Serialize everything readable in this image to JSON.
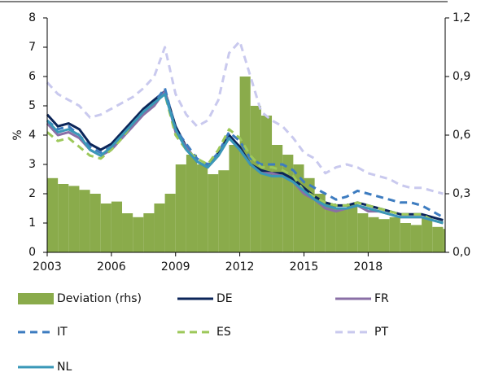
{
  "chart_data": {
    "type": "combo",
    "y_label": "%",
    "x": [
      2003,
      2003.5,
      2004,
      2004.5,
      2005,
      2005.5,
      2006,
      2006.5,
      2007,
      2007.5,
      2008,
      2008.5,
      2009,
      2009.5,
      2010,
      2010.5,
      2011,
      2011.5,
      2012,
      2012.5,
      2013,
      2013.5,
      2014,
      2014.5,
      2015,
      2015.5,
      2016,
      2016.5,
      2017,
      2017.5,
      2018,
      2018.5,
      2019,
      2019.5,
      2020,
      2020.5,
      2021,
      2021.5
    ],
    "xlim": [
      2003,
      2021.6
    ],
    "xticks": [
      2003,
      2006,
      2009,
      2012,
      2015,
      2018
    ],
    "ylim": [
      0,
      8
    ],
    "yticks": [
      0,
      1,
      2,
      3,
      4,
      5,
      6,
      7,
      8
    ],
    "y2lim": [
      0,
      1.2
    ],
    "y2ticks": [
      {
        "value": 0,
        "label": "0,0"
      },
      {
        "value": 0.3,
        "label": "0,3"
      },
      {
        "value": 0.6,
        "label": "0,6"
      },
      {
        "value": 0.9,
        "label": "0,9"
      },
      {
        "value": 1.2,
        "label": "1,2"
      }
    ],
    "series": [
      {
        "name": "Deviation (rhs)",
        "type": "bar",
        "axis": "y2",
        "color": "#8aab4b",
        "values": [
          0.38,
          0.35,
          0.34,
          0.32,
          0.3,
          0.25,
          0.26,
          0.2,
          0.18,
          0.2,
          0.25,
          0.3,
          0.45,
          0.5,
          0.45,
          0.4,
          0.42,
          0.55,
          0.9,
          0.75,
          0.7,
          0.55,
          0.5,
          0.45,
          0.38,
          0.3,
          0.25,
          0.22,
          0.25,
          0.2,
          0.18,
          0.17,
          0.18,
          0.15,
          0.14,
          0.18,
          0.13,
          0.12
        ]
      },
      {
        "name": "DE",
        "type": "line",
        "dashed": false,
        "color": "#0b2559",
        "values": [
          4.7,
          4.3,
          4.4,
          4.2,
          3.7,
          3.5,
          3.7,
          4.1,
          4.5,
          4.9,
          5.2,
          5.5,
          4.3,
          3.6,
          3.1,
          2.9,
          3.4,
          4.0,
          3.6,
          3.0,
          2.8,
          2.7,
          2.7,
          2.5,
          2.2,
          1.9,
          1.7,
          1.6,
          1.6,
          1.7,
          1.6,
          1.5,
          1.4,
          1.3,
          1.3,
          1.3,
          1.2,
          1.1
        ]
      },
      {
        "name": "FR",
        "type": "line",
        "dashed": false,
        "color": "#8a6fa6",
        "values": [
          4.4,
          4.0,
          4.1,
          3.9,
          3.5,
          3.3,
          3.5,
          3.9,
          4.3,
          4.7,
          5.0,
          5.5,
          4.1,
          3.6,
          3.1,
          2.9,
          3.3,
          3.9,
          3.5,
          3.0,
          2.7,
          2.7,
          2.6,
          2.4,
          2.0,
          1.8,
          1.5,
          1.4,
          1.5,
          1.6,
          1.4,
          1.4,
          1.3,
          1.2,
          1.2,
          1.2,
          1.1,
          1.0
        ]
      },
      {
        "name": "IT",
        "type": "line",
        "dashed": true,
        "color": "#3d7cc0",
        "values": [
          4.5,
          4.2,
          4.3,
          4.0,
          3.6,
          3.4,
          3.6,
          4.0,
          4.4,
          4.8,
          5.1,
          5.6,
          4.2,
          3.7,
          3.2,
          3.0,
          3.4,
          4.1,
          3.8,
          3.2,
          3.0,
          3.0,
          3.0,
          2.8,
          2.4,
          2.2,
          2.0,
          1.8,
          1.9,
          2.1,
          2.0,
          1.9,
          1.8,
          1.7,
          1.7,
          1.6,
          1.4,
          1.2
        ]
      },
      {
        "name": "ES",
        "type": "line",
        "dashed": true,
        "color": "#9dc85a",
        "values": [
          4.1,
          3.8,
          3.9,
          3.6,
          3.3,
          3.2,
          3.5,
          3.9,
          4.4,
          4.8,
          5.1,
          5.4,
          4.0,
          3.5,
          3.2,
          3.0,
          3.5,
          4.2,
          3.9,
          3.3,
          2.9,
          2.9,
          2.8,
          2.6,
          2.1,
          1.9,
          1.7,
          1.6,
          1.6,
          1.7,
          1.6,
          1.5,
          1.4,
          1.3,
          1.3,
          1.3,
          1.1,
          1.0
        ]
      },
      {
        "name": "PT",
        "type": "line",
        "dashed": true,
        "color": "#c9c9ee",
        "values": [
          5.8,
          5.4,
          5.2,
          5.0,
          4.6,
          4.7,
          4.9,
          5.1,
          5.3,
          5.6,
          6.0,
          7.0,
          5.4,
          4.7,
          4.3,
          4.5,
          5.2,
          6.8,
          7.2,
          6.0,
          4.8,
          4.5,
          4.3,
          3.9,
          3.4,
          3.2,
          2.7,
          2.9,
          3.0,
          2.9,
          2.7,
          2.6,
          2.5,
          2.3,
          2.2,
          2.2,
          2.1,
          2.0
        ]
      },
      {
        "name": "NL",
        "type": "line",
        "dashed": false,
        "color": "#3a98b8",
        "values": [
          4.5,
          4.1,
          4.2,
          4.0,
          3.5,
          3.3,
          3.6,
          4.0,
          4.4,
          4.8,
          5.1,
          5.4,
          4.2,
          3.5,
          3.1,
          2.9,
          3.3,
          3.9,
          3.5,
          3.0,
          2.7,
          2.6,
          2.6,
          2.4,
          2.1,
          1.8,
          1.6,
          1.5,
          1.5,
          1.6,
          1.5,
          1.4,
          1.3,
          1.2,
          1.2,
          1.2,
          1.1,
          1.0
        ]
      }
    ]
  }
}
